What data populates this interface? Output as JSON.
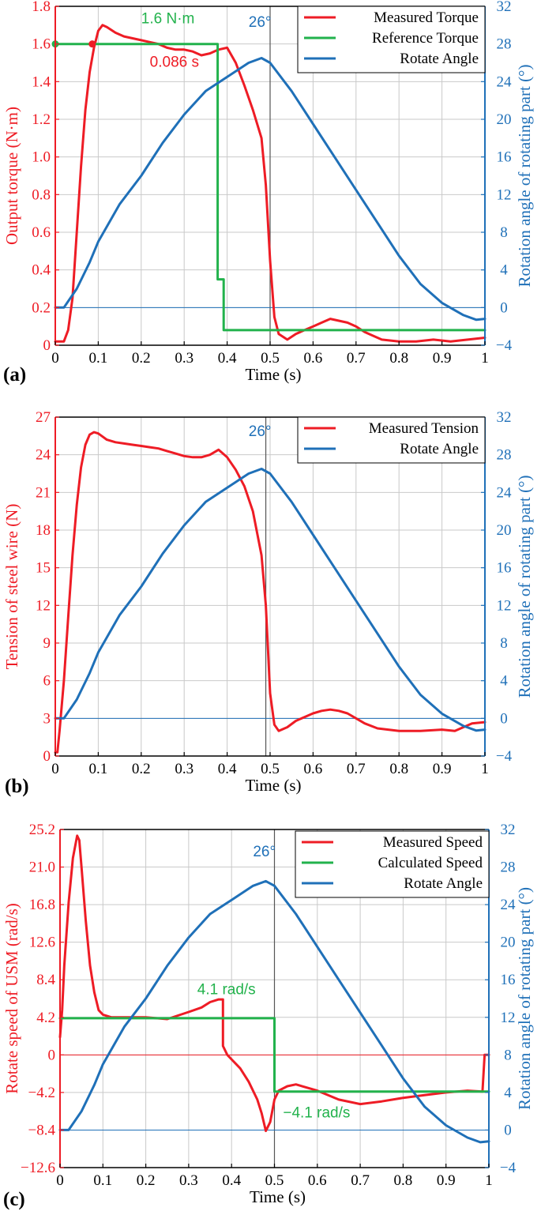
{
  "colors": {
    "red": "#ee1c25",
    "green": "#22b24c",
    "blue": "#1f70b8",
    "grid": "#c9c9c9",
    "axis": "#000000"
  },
  "chart_data": [
    {
      "type": "line",
      "panel_label": "(a)",
      "xlabel": "Time (s)",
      "ylabel_left": "Output torque (N·m)",
      "ylabel_right": "Rotation angle of rotating part (°)",
      "xlim": [
        0,
        1
      ],
      "ylim_left": [
        0,
        1.8
      ],
      "ylim_right": [
        -4,
        32
      ],
      "xticks": [
        "0",
        "0.1",
        "0.2",
        "0.3",
        "0.4",
        "0.5",
        "0.6",
        "0.7",
        "0.8",
        "0.9",
        "1"
      ],
      "yticks_left": [
        "0",
        "0.2",
        "0.4",
        "0.6",
        "0.8",
        "1.0",
        "1.2",
        "1.4",
        "1.6",
        "1.8"
      ],
      "yticks_right": [
        "−4",
        "0",
        "4",
        "8",
        "12",
        "16",
        "20",
        "24",
        "28",
        "32"
      ],
      "grid": true,
      "vline_x": 0.5,
      "hline_left": 0.2,
      "legend": {
        "placement": "top-right",
        "entries": [
          "Measured Torque",
          "Reference Torque",
          "Rotate Angle"
        ]
      },
      "annotations": [
        {
          "text": "1.6 N·m",
          "x": 0.2,
          "y": 1.71,
          "axis": "left",
          "color": "green"
        },
        {
          "text": "0.086 s",
          "x": 0.22,
          "y": 1.48,
          "axis": "left",
          "color": "red"
        },
        {
          "text": "26°",
          "x": 0.45,
          "y": 1.69,
          "axis": "left",
          "color": "blue"
        }
      ],
      "markers": [
        {
          "x": 0,
          "y": 1.6,
          "axis": "left",
          "color": "green"
        },
        {
          "x": 0.086,
          "y": 1.6,
          "axis": "left",
          "color": "red"
        }
      ],
      "series": [
        {
          "name": "Measured Torque",
          "axis": "left",
          "color": "red",
          "x": [
            0,
            0.02,
            0.03,
            0.04,
            0.05,
            0.06,
            0.07,
            0.08,
            0.09,
            0.1,
            0.11,
            0.12,
            0.14,
            0.16,
            0.18,
            0.2,
            0.22,
            0.24,
            0.26,
            0.28,
            0.3,
            0.32,
            0.34,
            0.36,
            0.38,
            0.4,
            0.42,
            0.44,
            0.46,
            0.48,
            0.49,
            0.5,
            0.51,
            0.52,
            0.54,
            0.56,
            0.58,
            0.6,
            0.62,
            0.64,
            0.66,
            0.68,
            0.7,
            0.72,
            0.74,
            0.76,
            0.8,
            0.84,
            0.88,
            0.92,
            0.96,
            1.0
          ],
          "y": [
            0.02,
            0.02,
            0.08,
            0.25,
            0.6,
            0.95,
            1.25,
            1.45,
            1.58,
            1.67,
            1.7,
            1.69,
            1.66,
            1.64,
            1.63,
            1.62,
            1.61,
            1.6,
            1.58,
            1.57,
            1.57,
            1.56,
            1.54,
            1.55,
            1.57,
            1.58,
            1.5,
            1.38,
            1.25,
            1.1,
            0.85,
            0.45,
            0.15,
            0.06,
            0.03,
            0.06,
            0.08,
            0.1,
            0.12,
            0.14,
            0.13,
            0.12,
            0.1,
            0.07,
            0.05,
            0.03,
            0.02,
            0.02,
            0.03,
            0.02,
            0.03,
            0.04
          ]
        },
        {
          "name": "Reference Torque",
          "axis": "left",
          "color": "green",
          "x": [
            0,
            0.378,
            0.378,
            0.392,
            0.392,
            1.0
          ],
          "y": [
            1.6,
            1.6,
            0.35,
            0.35,
            0.08,
            0.08
          ]
        },
        {
          "name": "Rotate Angle",
          "axis": "right",
          "color": "blue",
          "x": [
            0,
            0.02,
            0.05,
            0.08,
            0.1,
            0.15,
            0.2,
            0.25,
            0.3,
            0.35,
            0.4,
            0.45,
            0.48,
            0.5,
            0.55,
            0.6,
            0.65,
            0.7,
            0.75,
            0.8,
            0.85,
            0.9,
            0.95,
            0.98,
            1.0
          ],
          "y": [
            0,
            0,
            2,
            4.8,
            7,
            11,
            14,
            17.5,
            20.5,
            23,
            24.5,
            26,
            26.5,
            26,
            23,
            19.5,
            16,
            12.5,
            9,
            5.5,
            2.5,
            0.5,
            -0.8,
            -1.3,
            -1.2
          ]
        }
      ]
    },
    {
      "type": "line",
      "panel_label": "(b)",
      "xlabel": "Time (s)",
      "ylabel_left": "Tension of steel wire  (N)",
      "ylabel_right": "Rotation angle of rotating part (°)",
      "xlim": [
        0,
        1
      ],
      "ylim_left": [
        0,
        27
      ],
      "ylim_right": [
        -4,
        32
      ],
      "xticks": [
        "0",
        "0.1",
        "0.2",
        "0.3",
        "0.4",
        "0.5",
        "0.6",
        "0.7",
        "0.8",
        "0.9",
        "1"
      ],
      "yticks_left": [
        "0",
        "3",
        "6",
        "9",
        "12",
        "15",
        "18",
        "21",
        "24",
        "27"
      ],
      "yticks_right": [
        "−4",
        "0",
        "4",
        "8",
        "12",
        "16",
        "20",
        "24",
        "28",
        "32"
      ],
      "grid": true,
      "vline_x": 0.49,
      "hline_left": 3,
      "legend": {
        "placement": "top-right",
        "entries": [
          "Measured Tension",
          "Rotate Angle"
        ]
      },
      "annotations": [
        {
          "text": "26°",
          "x": 0.45,
          "y": 25.5,
          "axis": "left",
          "color": "blue"
        }
      ],
      "markers": [],
      "series": [
        {
          "name": "Measured Tension",
          "axis": "left",
          "color": "red",
          "x": [
            0,
            0.005,
            0.01,
            0.02,
            0.03,
            0.04,
            0.05,
            0.06,
            0.07,
            0.08,
            0.09,
            0.1,
            0.12,
            0.14,
            0.16,
            0.18,
            0.2,
            0.22,
            0.24,
            0.26,
            0.28,
            0.3,
            0.32,
            0.34,
            0.36,
            0.38,
            0.4,
            0.42,
            0.44,
            0.46,
            0.48,
            0.49,
            0.5,
            0.51,
            0.52,
            0.54,
            0.56,
            0.58,
            0.6,
            0.62,
            0.64,
            0.66,
            0.68,
            0.7,
            0.72,
            0.75,
            0.8,
            0.85,
            0.9,
            0.93,
            0.95,
            0.97,
            1.0
          ],
          "y": [
            0.3,
            0.3,
            2,
            6,
            11,
            16,
            20,
            23,
            24.8,
            25.6,
            25.8,
            25.7,
            25.2,
            25,
            24.9,
            24.8,
            24.7,
            24.6,
            24.5,
            24.3,
            24.1,
            23.9,
            23.8,
            23.8,
            24.0,
            24.4,
            23.8,
            22.8,
            21.5,
            19.5,
            16,
            12,
            5,
            2.5,
            2,
            2.3,
            2.8,
            3.1,
            3.4,
            3.6,
            3.7,
            3.6,
            3.4,
            3.0,
            2.6,
            2.2,
            2.0,
            2.0,
            2.1,
            2.0,
            2.3,
            2.6,
            2.7
          ]
        },
        {
          "name": "Rotate Angle",
          "axis": "right",
          "color": "blue",
          "x": [
            0,
            0.02,
            0.05,
            0.08,
            0.1,
            0.15,
            0.2,
            0.25,
            0.3,
            0.35,
            0.4,
            0.45,
            0.48,
            0.5,
            0.55,
            0.6,
            0.65,
            0.7,
            0.75,
            0.8,
            0.85,
            0.9,
            0.95,
            0.98,
            1.0
          ],
          "y": [
            0,
            0,
            2,
            4.8,
            7,
            11,
            14,
            17.5,
            20.5,
            23,
            24.5,
            26,
            26.5,
            26,
            23,
            19.5,
            16,
            12.5,
            9,
            5.5,
            2.5,
            0.5,
            -0.8,
            -1.3,
            -1.2
          ]
        }
      ]
    },
    {
      "type": "line",
      "panel_label": "(c)",
      "xlabel": "Time (s)",
      "ylabel_left": "Rotate speed of USM  (rad/s)",
      "ylabel_right": "Rotation angle of rotating part (°)",
      "xlim": [
        0,
        1
      ],
      "ylim_left": [
        -12.6,
        25.2
      ],
      "ylim_right": [
        -4,
        32
      ],
      "xticks": [
        "0",
        "0.1",
        "0.2",
        "0.3",
        "0.4",
        "0.5",
        "0.6",
        "0.7",
        "0.8",
        "0.9",
        "1"
      ],
      "yticks_left": [
        "−12.6",
        "−8.4",
        "−4.2",
        "0",
        "4.2",
        "8.4",
        "12.6",
        "16.8",
        "21.0",
        "25.2"
      ],
      "yticks_right": [
        "−4",
        "0",
        "4",
        "8",
        "12",
        "16",
        "20",
        "24",
        "28",
        "32"
      ],
      "grid": true,
      "vline_x": 0.5,
      "hline_left": 0,
      "hline_right": 0,
      "legend": {
        "placement": "top-right",
        "entries": [
          "Measured Speed",
          "Calculated Speed",
          "Rotate Angle"
        ]
      },
      "annotations": [
        {
          "text": "4.1 rad/s",
          "x": 0.32,
          "y": 6.8,
          "axis": "left",
          "color": "green"
        },
        {
          "text": "−4.1 rad/s",
          "x": 0.52,
          "y": -7.0,
          "axis": "left",
          "color": "green"
        },
        {
          "text": "26°",
          "x": 0.45,
          "y": 22.2,
          "axis": "left",
          "color": "blue"
        }
      ],
      "markers": [],
      "series": [
        {
          "name": "Measured Speed",
          "axis": "left",
          "color": "red",
          "x": [
            0,
            0.005,
            0.01,
            0.02,
            0.03,
            0.04,
            0.045,
            0.05,
            0.06,
            0.07,
            0.08,
            0.09,
            0.1,
            0.12,
            0.15,
            0.2,
            0.25,
            0.3,
            0.33,
            0.35,
            0.37,
            0.38,
            0.38,
            0.39,
            0.4,
            0.42,
            0.44,
            0.46,
            0.47,
            0.48,
            0.49,
            0.5,
            0.51,
            0.53,
            0.55,
            0.6,
            0.65,
            0.7,
            0.75,
            0.8,
            0.85,
            0.9,
            0.95,
            0.985,
            0.99,
            1.0
          ],
          "y": [
            2,
            5,
            10,
            17,
            22,
            24.5,
            24,
            21,
            15,
            10,
            7,
            5,
            4.5,
            4.2,
            4.2,
            4.2,
            4.0,
            4.8,
            5.3,
            5.9,
            6.2,
            6.2,
            1.0,
            0.0,
            -0.5,
            -1.5,
            -3,
            -5,
            -6.5,
            -8.5,
            -7.5,
            -5,
            -4.0,
            -3.5,
            -3.3,
            -4.0,
            -5.0,
            -5.5,
            -5.2,
            -4.8,
            -4.5,
            -4.2,
            -4.0,
            -4.1,
            0,
            0
          ]
        },
        {
          "name": "Calculated Speed",
          "axis": "left",
          "color": "green",
          "x": [
            0,
            0.5,
            0.5,
            1.0
          ],
          "y": [
            4.1,
            4.1,
            -4.1,
            -4.1
          ]
        },
        {
          "name": "Rotate Angle",
          "axis": "right",
          "color": "blue",
          "x": [
            0,
            0.02,
            0.05,
            0.08,
            0.1,
            0.15,
            0.2,
            0.25,
            0.3,
            0.35,
            0.4,
            0.45,
            0.48,
            0.5,
            0.55,
            0.6,
            0.65,
            0.7,
            0.75,
            0.8,
            0.85,
            0.9,
            0.95,
            0.98,
            1.0
          ],
          "y": [
            0,
            0,
            2,
            4.8,
            7,
            11,
            14,
            17.5,
            20.5,
            23,
            24.5,
            26,
            26.5,
            26,
            23,
            19.5,
            16,
            12.5,
            9,
            5.5,
            2.5,
            0.5,
            -0.8,
            -1.3,
            -1.2
          ]
        }
      ]
    }
  ]
}
